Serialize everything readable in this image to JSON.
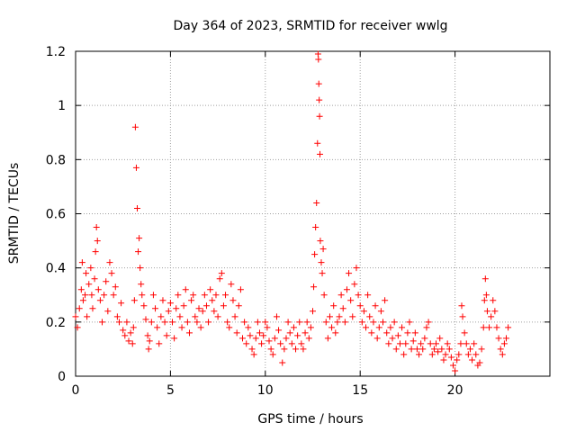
{
  "chart_data": {
    "type": "scatter",
    "title": "Day 364 of 2023, SRMTID for receiver wwlg",
    "xlabel": "GPS time / hours",
    "ylabel": "SRMTID / TECUs",
    "xlim": [
      0,
      25
    ],
    "ylim": [
      0,
      1.2
    ],
    "x_ticks": [
      {
        "value": 0,
        "label": "0"
      },
      {
        "value": 5,
        "label": "5"
      },
      {
        "value": 10,
        "label": "10"
      },
      {
        "value": 15,
        "label": "15"
      },
      {
        "value": 20,
        "label": "20"
      }
    ],
    "y_ticks": [
      {
        "value": 0,
        "label": "0"
      },
      {
        "value": 0.2,
        "label": "0.2"
      },
      {
        "value": 0.4,
        "label": "0.4"
      },
      {
        "value": 0.6,
        "label": "0.6"
      },
      {
        "value": 0.8,
        "label": "0.8"
      },
      {
        "value": 1.0,
        "label": "1"
      },
      {
        "value": 1.2,
        "label": "1.2"
      }
    ],
    "grid": true,
    "marker": "+",
    "color": "#ff0000",
    "series": [
      {
        "name": "SRMTID",
        "points": [
          [
            0.0,
            0.22
          ],
          [
            0.1,
            0.18
          ],
          [
            0.2,
            0.25
          ],
          [
            0.3,
            0.32
          ],
          [
            0.35,
            0.42
          ],
          [
            0.4,
            0.28
          ],
          [
            0.5,
            0.3
          ],
          [
            0.55,
            0.38
          ],
          [
            0.6,
            0.22
          ],
          [
            0.7,
            0.34
          ],
          [
            0.8,
            0.4
          ],
          [
            0.85,
            0.3
          ],
          [
            0.9,
            0.25
          ],
          [
            1.0,
            0.36
          ],
          [
            1.05,
            0.46
          ],
          [
            1.1,
            0.55
          ],
          [
            1.15,
            0.5
          ],
          [
            1.2,
            0.32
          ],
          [
            1.3,
            0.28
          ],
          [
            1.4,
            0.2
          ],
          [
            1.5,
            0.3
          ],
          [
            1.6,
            0.35
          ],
          [
            1.7,
            0.24
          ],
          [
            1.8,
            0.42
          ],
          [
            1.9,
            0.38
          ],
          [
            2.0,
            0.3
          ],
          [
            2.1,
            0.33
          ],
          [
            2.2,
            0.22
          ],
          [
            2.3,
            0.2
          ],
          [
            2.4,
            0.27
          ],
          [
            2.5,
            0.17
          ],
          [
            2.6,
            0.15
          ],
          [
            2.7,
            0.2
          ],
          [
            2.8,
            0.13
          ],
          [
            2.9,
            0.16
          ],
          [
            3.0,
            0.12
          ],
          [
            3.05,
            0.18
          ],
          [
            3.1,
            0.28
          ],
          [
            3.15,
            0.92
          ],
          [
            3.2,
            0.77
          ],
          [
            3.25,
            0.62
          ],
          [
            3.3,
            0.46
          ],
          [
            3.35,
            0.51
          ],
          [
            3.4,
            0.4
          ],
          [
            3.45,
            0.34
          ],
          [
            3.5,
            0.3
          ],
          [
            3.6,
            0.26
          ],
          [
            3.7,
            0.21
          ],
          [
            3.8,
            0.15
          ],
          [
            3.85,
            0.1
          ],
          [
            3.9,
            0.13
          ],
          [
            4.0,
            0.2
          ],
          [
            4.1,
            0.3
          ],
          [
            4.2,
            0.25
          ],
          [
            4.3,
            0.18
          ],
          [
            4.4,
            0.12
          ],
          [
            4.5,
            0.22
          ],
          [
            4.6,
            0.28
          ],
          [
            4.7,
            0.2
          ],
          [
            4.8,
            0.15
          ],
          [
            4.9,
            0.24
          ],
          [
            5.0,
            0.27
          ],
          [
            5.1,
            0.2
          ],
          [
            5.2,
            0.14
          ],
          [
            5.3,
            0.25
          ],
          [
            5.4,
            0.3
          ],
          [
            5.5,
            0.22
          ],
          [
            5.6,
            0.18
          ],
          [
            5.7,
            0.26
          ],
          [
            5.8,
            0.32
          ],
          [
            5.9,
            0.2
          ],
          [
            6.0,
            0.16
          ],
          [
            6.1,
            0.28
          ],
          [
            6.2,
            0.3
          ],
          [
            6.3,
            0.22
          ],
          [
            6.4,
            0.2
          ],
          [
            6.5,
            0.25
          ],
          [
            6.6,
            0.18
          ],
          [
            6.7,
            0.24
          ],
          [
            6.8,
            0.3
          ],
          [
            6.9,
            0.26
          ],
          [
            7.0,
            0.2
          ],
          [
            7.1,
            0.32
          ],
          [
            7.2,
            0.28
          ],
          [
            7.3,
            0.24
          ],
          [
            7.4,
            0.3
          ],
          [
            7.5,
            0.22
          ],
          [
            7.6,
            0.36
          ],
          [
            7.7,
            0.38
          ],
          [
            7.8,
            0.26
          ],
          [
            7.9,
            0.3
          ],
          [
            8.0,
            0.2
          ],
          [
            8.1,
            0.18
          ],
          [
            8.2,
            0.34
          ],
          [
            8.3,
            0.28
          ],
          [
            8.4,
            0.22
          ],
          [
            8.5,
            0.16
          ],
          [
            8.6,
            0.26
          ],
          [
            8.7,
            0.32
          ],
          [
            8.8,
            0.14
          ],
          [
            8.9,
            0.2
          ],
          [
            9.0,
            0.12
          ],
          [
            9.1,
            0.18
          ],
          [
            9.2,
            0.15
          ],
          [
            9.3,
            0.1
          ],
          [
            9.4,
            0.08
          ],
          [
            9.5,
            0.14
          ],
          [
            9.6,
            0.2
          ],
          [
            9.7,
            0.16
          ],
          [
            9.8,
            0.12
          ],
          [
            9.9,
            0.15
          ],
          [
            10.0,
            0.2
          ],
          [
            10.1,
            0.18
          ],
          [
            10.2,
            0.13
          ],
          [
            10.3,
            0.1
          ],
          [
            10.4,
            0.08
          ],
          [
            10.5,
            0.14
          ],
          [
            10.6,
            0.22
          ],
          [
            10.7,
            0.17
          ],
          [
            10.8,
            0.12
          ],
          [
            10.9,
            0.05
          ],
          [
            11.0,
            0.1
          ],
          [
            11.1,
            0.14
          ],
          [
            11.2,
            0.2
          ],
          [
            11.3,
            0.16
          ],
          [
            11.4,
            0.12
          ],
          [
            11.5,
            0.18
          ],
          [
            11.6,
            0.1
          ],
          [
            11.7,
            0.15
          ],
          [
            11.8,
            0.2
          ],
          [
            11.9,
            0.12
          ],
          [
            12.0,
            0.1
          ],
          [
            12.1,
            0.16
          ],
          [
            12.2,
            0.2
          ],
          [
            12.3,
            0.14
          ],
          [
            12.4,
            0.18
          ],
          [
            12.5,
            0.24
          ],
          [
            12.55,
            0.33
          ],
          [
            12.6,
            0.45
          ],
          [
            12.65,
            0.55
          ],
          [
            12.7,
            0.64
          ],
          [
            12.75,
            0.86
          ],
          [
            12.78,
            1.19
          ],
          [
            12.8,
            1.17
          ],
          [
            12.82,
            1.08
          ],
          [
            12.84,
            1.02
          ],
          [
            12.86,
            0.96
          ],
          [
            12.88,
            0.82
          ],
          [
            12.9,
            0.5
          ],
          [
            12.95,
            0.42
          ],
          [
            13.0,
            0.38
          ],
          [
            13.05,
            0.47
          ],
          [
            13.1,
            0.3
          ],
          [
            13.2,
            0.2
          ],
          [
            13.3,
            0.14
          ],
          [
            13.4,
            0.22
          ],
          [
            13.5,
            0.18
          ],
          [
            13.6,
            0.26
          ],
          [
            13.7,
            0.16
          ],
          [
            13.8,
            0.2
          ],
          [
            13.9,
            0.22
          ],
          [
            14.0,
            0.3
          ],
          [
            14.1,
            0.25
          ],
          [
            14.2,
            0.2
          ],
          [
            14.3,
            0.32
          ],
          [
            14.4,
            0.38
          ],
          [
            14.5,
            0.28
          ],
          [
            14.6,
            0.22
          ],
          [
            14.7,
            0.34
          ],
          [
            14.8,
            0.4
          ],
          [
            14.9,
            0.3
          ],
          [
            15.0,
            0.26
          ],
          [
            15.1,
            0.2
          ],
          [
            15.2,
            0.24
          ],
          [
            15.3,
            0.18
          ],
          [
            15.4,
            0.3
          ],
          [
            15.5,
            0.22
          ],
          [
            15.6,
            0.16
          ],
          [
            15.7,
            0.2
          ],
          [
            15.8,
            0.26
          ],
          [
            15.9,
            0.14
          ],
          [
            16.0,
            0.18
          ],
          [
            16.1,
            0.24
          ],
          [
            16.2,
            0.2
          ],
          [
            16.3,
            0.28
          ],
          [
            16.4,
            0.16
          ],
          [
            16.5,
            0.12
          ],
          [
            16.6,
            0.18
          ],
          [
            16.7,
            0.14
          ],
          [
            16.8,
            0.2
          ],
          [
            16.9,
            0.1
          ],
          [
            17.0,
            0.15
          ],
          [
            17.1,
            0.12
          ],
          [
            17.2,
            0.18
          ],
          [
            17.3,
            0.08
          ],
          [
            17.4,
            0.12
          ],
          [
            17.5,
            0.16
          ],
          [
            17.6,
            0.2
          ],
          [
            17.7,
            0.1
          ],
          [
            17.8,
            0.13
          ],
          [
            17.9,
            0.16
          ],
          [
            18.0,
            0.1
          ],
          [
            18.1,
            0.08
          ],
          [
            18.2,
            0.12
          ],
          [
            18.3,
            0.1
          ],
          [
            18.4,
            0.14
          ],
          [
            18.5,
            0.18
          ],
          [
            18.6,
            0.2
          ],
          [
            18.7,
            0.12
          ],
          [
            18.8,
            0.08
          ],
          [
            18.9,
            0.1
          ],
          [
            19.0,
            0.12
          ],
          [
            19.1,
            0.09
          ],
          [
            19.2,
            0.14
          ],
          [
            19.3,
            0.1
          ],
          [
            19.4,
            0.06
          ],
          [
            19.5,
            0.08
          ],
          [
            19.6,
            0.12
          ],
          [
            19.7,
            0.1
          ],
          [
            19.8,
            0.07
          ],
          [
            19.9,
            0.04
          ],
          [
            20.0,
            0.02
          ],
          [
            20.1,
            0.06
          ],
          [
            20.2,
            0.08
          ],
          [
            20.3,
            0.12
          ],
          [
            20.35,
            0.26
          ],
          [
            20.4,
            0.22
          ],
          [
            20.5,
            0.16
          ],
          [
            20.6,
            0.12
          ],
          [
            20.7,
            0.08
          ],
          [
            20.8,
            0.1
          ],
          [
            20.9,
            0.06
          ],
          [
            21.0,
            0.12
          ],
          [
            21.1,
            0.08
          ],
          [
            21.2,
            0.04
          ],
          [
            21.3,
            0.05
          ],
          [
            21.4,
            0.1
          ],
          [
            21.5,
            0.18
          ],
          [
            21.55,
            0.28
          ],
          [
            21.6,
            0.36
          ],
          [
            21.65,
            0.3
          ],
          [
            21.7,
            0.24
          ],
          [
            21.8,
            0.18
          ],
          [
            21.9,
            0.22
          ],
          [
            22.0,
            0.28
          ],
          [
            22.1,
            0.24
          ],
          [
            22.2,
            0.18
          ],
          [
            22.3,
            0.14
          ],
          [
            22.4,
            0.1
          ],
          [
            22.5,
            0.08
          ],
          [
            22.6,
            0.12
          ],
          [
            22.7,
            0.14
          ],
          [
            22.8,
            0.18
          ]
        ]
      }
    ]
  }
}
